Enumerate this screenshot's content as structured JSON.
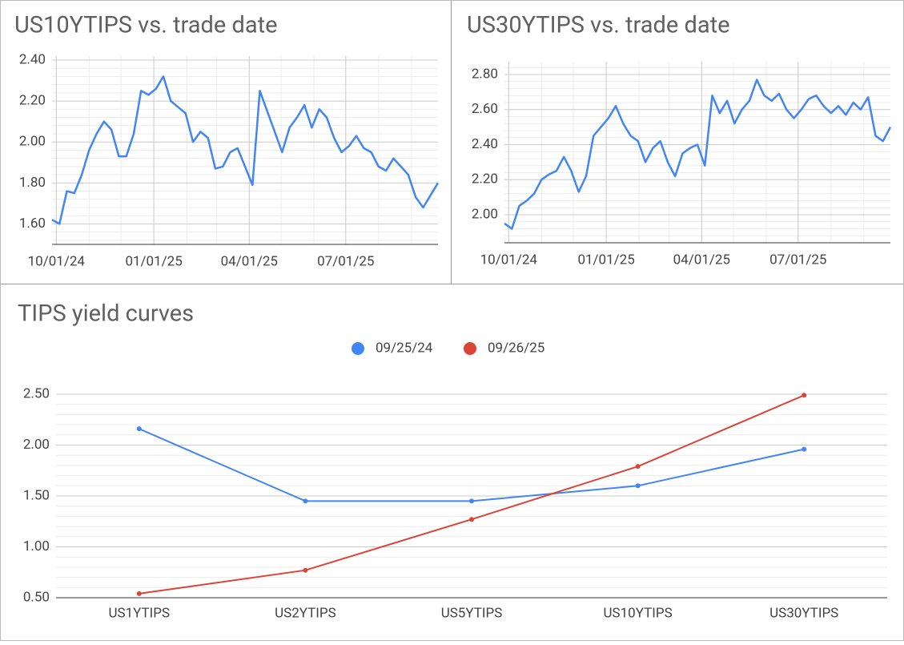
{
  "chart_data": [
    {
      "type": "line",
      "title": "US10YTIPS vs. trade date",
      "color": "#4285f4",
      "grid": true,
      "minor_grid": true,
      "x": [
        "09/27/24",
        "10/04/24",
        "10/11/24",
        "10/18/24",
        "10/25/24",
        "11/01/24",
        "11/08/24",
        "11/15/24",
        "11/22/24",
        "11/29/24",
        "12/06/24",
        "12/13/24",
        "12/20/24",
        "12/27/24",
        "01/03/25",
        "01/10/25",
        "01/17/25",
        "01/24/25",
        "01/31/25",
        "02/07/25",
        "02/14/25",
        "02/21/25",
        "02/28/25",
        "03/07/25",
        "03/14/25",
        "03/21/25",
        "03/28/25",
        "04/04/25",
        "04/11/25",
        "04/18/25",
        "04/25/25",
        "05/02/25",
        "05/09/25",
        "05/16/25",
        "05/23/25",
        "05/30/25",
        "06/06/25",
        "06/13/25",
        "06/20/25",
        "06/27/25",
        "07/04/25",
        "07/11/25",
        "07/18/25",
        "07/25/25",
        "08/01/25",
        "08/08/25",
        "08/15/25",
        "08/22/25",
        "08/29/25",
        "09/05/25",
        "09/12/25",
        "09/19/25",
        "09/26/25"
      ],
      "values": [
        1.62,
        1.6,
        1.76,
        1.75,
        1.84,
        1.96,
        2.04,
        2.1,
        2.06,
        1.93,
        1.93,
        2.04,
        2.25,
        2.23,
        2.26,
        2.32,
        2.2,
        2.17,
        2.14,
        2.0,
        2.05,
        2.02,
        1.87,
        1.88,
        1.95,
        1.97,
        1.88,
        1.79,
        2.25,
        2.15,
        2.05,
        1.95,
        2.07,
        2.12,
        2.18,
        2.07,
        2.16,
        2.12,
        2.02,
        1.95,
        1.98,
        2.03,
        1.97,
        1.95,
        1.88,
        1.86,
        1.92,
        1.88,
        1.84,
        1.73,
        1.68,
        1.74,
        1.8
      ],
      "xlim": [
        "09/27/24",
        "09/26/25"
      ],
      "xticks": [
        "10/01/24",
        "01/01/25",
        "04/01/25",
        "07/01/25"
      ],
      "ylim": [
        1.5,
        2.4
      ],
      "yticks": [
        {
          "value": 1.6,
          "label": "1.60"
        },
        {
          "value": 1.8,
          "label": "1.80"
        },
        {
          "value": 2.0,
          "label": "2.00"
        },
        {
          "value": 2.2,
          "label": "2.20"
        },
        {
          "value": 2.4,
          "label": "2.40"
        }
      ]
    },
    {
      "type": "line",
      "title": "US30YTIPS vs. trade date",
      "color": "#4285f4",
      "grid": true,
      "minor_grid": true,
      "x": [
        "09/27/24",
        "10/04/24",
        "10/11/24",
        "10/18/24",
        "10/25/24",
        "11/01/24",
        "11/08/24",
        "11/15/24",
        "11/22/24",
        "11/29/24",
        "12/06/24",
        "12/13/24",
        "12/20/24",
        "12/27/24",
        "01/03/25",
        "01/10/25",
        "01/17/25",
        "01/24/25",
        "01/31/25",
        "02/07/25",
        "02/14/25",
        "02/21/25",
        "02/28/25",
        "03/07/25",
        "03/14/25",
        "03/21/25",
        "03/28/25",
        "04/04/25",
        "04/11/25",
        "04/18/25",
        "04/25/25",
        "05/02/25",
        "05/09/25",
        "05/16/25",
        "05/23/25",
        "05/30/25",
        "06/06/25",
        "06/13/25",
        "06/20/25",
        "06/27/25",
        "07/04/25",
        "07/11/25",
        "07/18/25",
        "07/25/25",
        "08/01/25",
        "08/08/25",
        "08/15/25",
        "08/22/25",
        "08/29/25",
        "09/05/25",
        "09/12/25",
        "09/19/25",
        "09/26/25"
      ],
      "values": [
        1.95,
        1.92,
        2.05,
        2.08,
        2.12,
        2.2,
        2.23,
        2.25,
        2.33,
        2.25,
        2.13,
        2.22,
        2.45,
        2.5,
        2.55,
        2.62,
        2.52,
        2.45,
        2.42,
        2.3,
        2.38,
        2.42,
        2.3,
        2.22,
        2.35,
        2.38,
        2.4,
        2.28,
        2.68,
        2.58,
        2.65,
        2.52,
        2.6,
        2.65,
        2.77,
        2.68,
        2.65,
        2.69,
        2.6,
        2.55,
        2.6,
        2.66,
        2.68,
        2.62,
        2.58,
        2.62,
        2.57,
        2.64,
        2.6,
        2.67,
        2.45,
        2.42,
        2.5
      ],
      "xlim": [
        "09/27/24",
        "09/26/25"
      ],
      "xticks": [
        "10/01/24",
        "01/01/25",
        "04/01/25",
        "07/01/25"
      ],
      "ylim": [
        1.84,
        2.85
      ],
      "yticks": [
        {
          "value": 2.0,
          "label": "2.00"
        },
        {
          "value": 2.2,
          "label": "2.20"
        },
        {
          "value": 2.4,
          "label": "2.40"
        },
        {
          "value": 2.6,
          "label": "2.60"
        },
        {
          "value": 2.8,
          "label": "2.80"
        }
      ]
    },
    {
      "type": "line",
      "title": "TIPS yield curves",
      "grid": true,
      "minor_grid": true,
      "legend": "top",
      "categories": [
        "US1YTIPS",
        "US2YTIPS",
        "US5YTIPS",
        "US10YTIPS",
        "US30YTIPS"
      ],
      "series": [
        {
          "name": "09/25/24",
          "color": "#4285f4",
          "values": [
            2.16,
            1.45,
            1.45,
            1.6,
            1.96
          ]
        },
        {
          "name": "09/26/25",
          "color": "#db4437",
          "values": [
            0.54,
            0.77,
            1.27,
            1.79,
            2.49
          ]
        }
      ],
      "ylim": [
        0.5,
        2.5
      ],
      "yticks": [
        {
          "value": 0.5,
          "label": "0.50"
        },
        {
          "value": 1.0,
          "label": "1.00"
        },
        {
          "value": 1.5,
          "label": "1.50"
        },
        {
          "value": 2.0,
          "label": "2.00"
        },
        {
          "value": 2.5,
          "label": "2.50"
        }
      ]
    }
  ]
}
